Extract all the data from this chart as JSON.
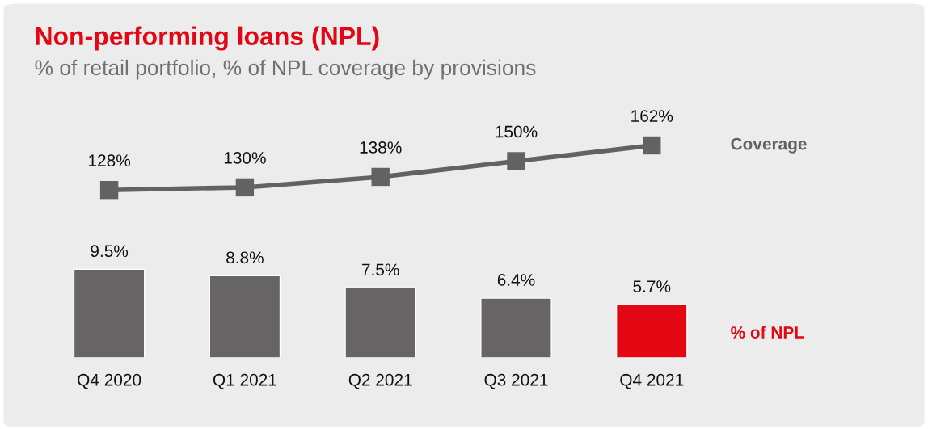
{
  "chart_data": {
    "type": "bar",
    "title": "Non-performing loans (NPL)",
    "subtitle": "% of retail portfolio, % of NPL coverage by provisions",
    "categories": [
      "Q4 2020",
      "Q1 2021",
      "Q2 2021",
      "Q3 2021",
      "Q4 2021"
    ],
    "series": [
      {
        "name": "Coverage",
        "type": "line",
        "axis": "y2",
        "color": "#636161",
        "values": [
          128,
          130,
          138,
          150,
          162
        ],
        "value_labels": [
          "128%",
          "130%",
          "138%",
          "150%",
          "162%"
        ]
      },
      {
        "name": "% of NPL",
        "colors": [
          "#666464",
          "#666464",
          "#666464",
          "#666464",
          "#e30613"
        ],
        "values": [
          9.5,
          8.8,
          7.5,
          6.4,
          5.7
        ],
        "value_labels": [
          "9.5%",
          "8.8%",
          "7.5%",
          "6.4%",
          "5.7%"
        ]
      }
    ],
    "ylim": [
      0,
      38
    ],
    "y2lim": [
      0,
      270
    ],
    "marker": "square",
    "line_style": "solid"
  }
}
